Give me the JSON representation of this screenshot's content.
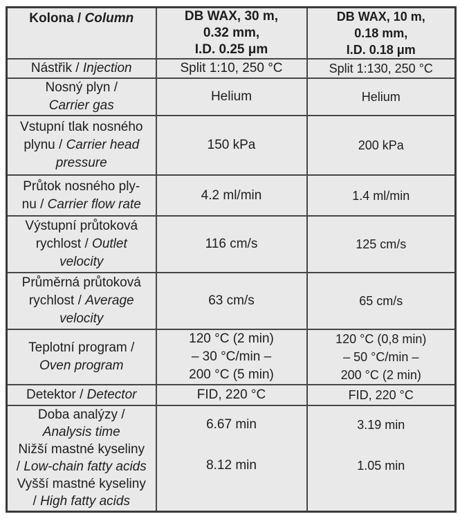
{
  "table": {
    "description_rows": [
      {
        "label": [
          {
            "cs": "Kolona /",
            "en": "Column"
          }
        ],
        "col2": [
          "DB WAX, 30 m,",
          "0.32 mm,",
          "I.D. 0.25 μm"
        ],
        "col3": [
          "DB WAX, 10 m,",
          "0.18 mm,",
          "I.D. 0.18 μm"
        ]
      },
      {
        "label": [
          {
            "cs": "Nástřik /",
            "en": "Injection"
          }
        ],
        "col2": [
          "Split 1:10, 250 °C"
        ],
        "col3": [
          "Split 1:130, 250 °C"
        ]
      },
      {
        "label": [
          {
            "cs": "Nosný plyn /"
          },
          {
            "en": "Carrier gas"
          }
        ],
        "col2": [
          "Helium"
        ],
        "col3": [
          "Helium"
        ]
      },
      {
        "label": [
          {
            "cs": "Vstupní tlak nosného"
          },
          {
            "cs": "plynu /",
            "en": "Carrier head"
          },
          {
            "en": "pressure"
          }
        ],
        "col2": [
          "150 kPa"
        ],
        "col3": [
          "200 kPa"
        ]
      },
      {
        "label": [
          {
            "cs": "Průtok nosného ply-"
          },
          {
            "cs": "nu /",
            "en": "Carrier flow rate"
          }
        ],
        "col2": [
          "4.2 ml/min"
        ],
        "col3": [
          "1.4 ml/min"
        ]
      },
      {
        "label": [
          {
            "cs": "Výstupní průtoková"
          },
          {
            "cs": "rychlost /",
            "en": "Outlet"
          },
          {
            "en": "velocity"
          }
        ],
        "col2": [
          "116 cm/s"
        ],
        "col3": [
          "125 cm/s"
        ]
      },
      {
        "label": [
          {
            "cs": "Průměrná průtoková"
          },
          {
            "cs": "rychlost /",
            "en": "Average"
          },
          {
            "en": "velocity"
          }
        ],
        "col2": [
          "63 cm/s"
        ],
        "col3": [
          "65 cm/s"
        ]
      },
      {
        "label": [
          {
            "cs": "Teplotní program /"
          },
          {
            "en": "Oven program"
          }
        ],
        "col2": [
          "120 °C (2 min)",
          "– 30 °C/min –",
          "200 °C (5 min)"
        ],
        "col3": [
          "120 °C (0,8 min)",
          "– 50 °C/min –",
          "200 °C (2 min)"
        ]
      },
      {
        "label": [
          {
            "cs": "Detektor /",
            "en": "Detector"
          }
        ],
        "col2": [
          "FID, 220 °C"
        ],
        "col3": [
          "FID, 220 °C"
        ]
      },
      {
        "label": [
          {
            "cs": "Doba analýzy /"
          },
          {
            "en": "Analysis time"
          },
          {
            "cs": "Nižší mastné kyseliny"
          },
          {
            "cs": "/",
            "en": "Low-chain fatty acids"
          },
          {
            "cs": "Vyšší mastné kyseliny"
          },
          {
            "cs": "/",
            "en": "High fatty acids"
          }
        ],
        "col2": [
          "6.67 min",
          "8.12 min"
        ],
        "col3": [
          "3.19 min",
          "1.05 min"
        ]
      }
    ],
    "colors": {
      "cell_background": "#e9e9e9",
      "border": "#464646",
      "outer_border": "#3a3a3a",
      "text": "#1d1d1d",
      "page_background": "#ffffff"
    }
  }
}
